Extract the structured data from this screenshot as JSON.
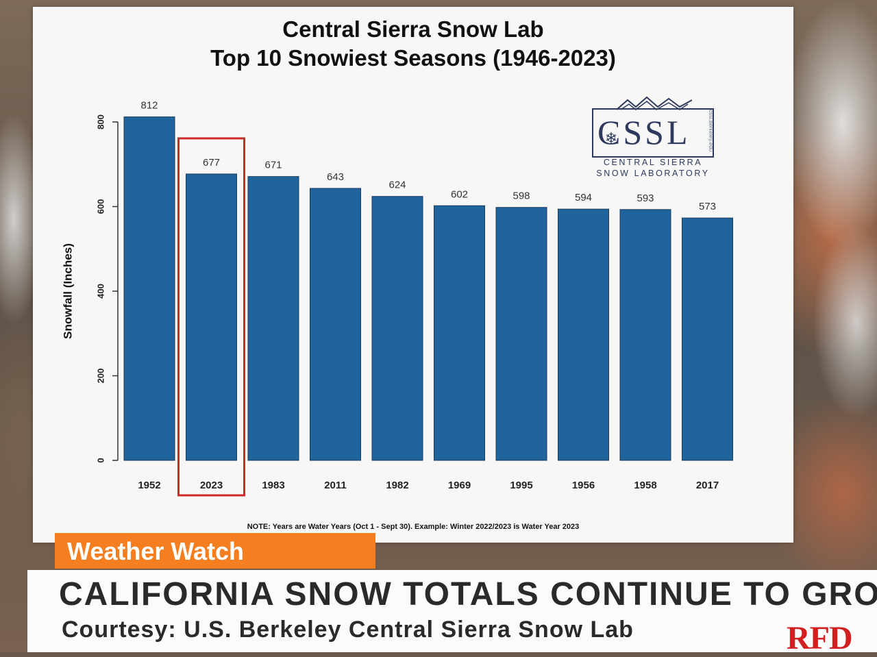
{
  "chart_data": {
    "type": "bar",
    "title": "Central Sierra Snow Lab",
    "subtitle": "Top 10 Snowiest Seasons (1946-2023)",
    "ylabel": "Snowfall (Inches)",
    "xlabel": "",
    "categories": [
      "1952",
      "2023",
      "1983",
      "2011",
      "1982",
      "1969",
      "1995",
      "1956",
      "1958",
      "2017"
    ],
    "values": [
      812,
      677,
      671,
      643,
      624,
      602,
      598,
      594,
      593,
      573
    ],
    "data_labels": [
      "812",
      "677",
      "671",
      "643",
      "624",
      "602",
      "598",
      "594",
      "593",
      "573"
    ],
    "ylim": [
      0,
      800
    ],
    "yticks": [
      0,
      200,
      400,
      600,
      800
    ],
    "ytick_labels": [
      "0",
      "200",
      "400",
      "600",
      "800"
    ],
    "highlighted_category": "2023",
    "bar_color": "#20649e",
    "highlight_color": "#cc2a2a",
    "note": "NOTE: Years are Water Years (Oct 1 - Sept 30). Example: Winter 2022/2023 is Water Year 2023"
  },
  "logo": {
    "letters": "CSSL",
    "line1": "CENTRAL SIERRA",
    "line2": "SNOW LABORATORY",
    "url": "cssl.berkeley.edu",
    "icon": "snowflake-icon"
  },
  "broadcast": {
    "segment_tag": "Weather Watch",
    "headline": "CALIFORNIA SNOW TOTALS CONTINUE TO GROW",
    "subline": "Courtesy: U.S. Berkeley Central Sierra Snow Lab",
    "station_logo": "RFD",
    "tag_color": "#f47e20"
  }
}
